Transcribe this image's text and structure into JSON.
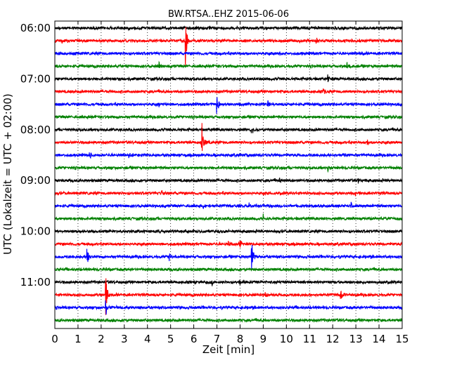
{
  "chart_data": {
    "type": "line",
    "title": "BW.RTSA..EHZ 2015-06-06",
    "xlabel": "Zeit  [min]",
    "ylabel": "UTC (Lokalzeit = UTC + 02:00)",
    "xlim": [
      0,
      15
    ],
    "x_ticks": [
      "0",
      "1",
      "2",
      "3",
      "4",
      "5",
      "6",
      "7",
      "8",
      "9",
      "10",
      "11",
      "12",
      "13",
      "14",
      "15"
    ],
    "y_tick_labels": [
      "06:00",
      "07:00",
      "08:00",
      "09:00",
      "10:00",
      "11:00"
    ],
    "grid": "vertical dotted",
    "colors": [
      "#000000",
      "#ff0000",
      "#0000ff",
      "#008000"
    ],
    "traces": [
      {
        "start": "06:00",
        "color": "#000000",
        "events": [
          {
            "t": 14.2,
            "amp": 0.25
          }
        ]
      },
      {
        "start": "06:15",
        "color": "#ff0000",
        "events": [
          {
            "t": 0.3,
            "amp": 0.35
          },
          {
            "t": 5.65,
            "amp": 1.6
          },
          {
            "t": 11.3,
            "amp": 0.25
          }
        ]
      },
      {
        "start": "06:30",
        "color": "#0000ff",
        "events": [
          {
            "t": 9.7,
            "amp": 0.2
          }
        ]
      },
      {
        "start": "06:45",
        "color": "#008000",
        "events": [
          {
            "t": 4.5,
            "amp": 0.3
          },
          {
            "t": 12.6,
            "amp": 0.35
          }
        ]
      },
      {
        "start": "07:00",
        "color": "#000000",
        "events": [
          {
            "t": 11.8,
            "amp": 0.3
          }
        ]
      },
      {
        "start": "07:15",
        "color": "#ff0000",
        "events": [
          {
            "t": 11.6,
            "amp": 0.3
          }
        ]
      },
      {
        "start": "07:30",
        "color": "#0000ff",
        "events": [
          {
            "t": 7.0,
            "amp": 0.9
          },
          {
            "t": 9.2,
            "amp": 0.35
          },
          {
            "t": 4.5,
            "amp": 0.2
          }
        ]
      },
      {
        "start": "07:45",
        "color": "#008000",
        "events": []
      },
      {
        "start": "08:00",
        "color": "#000000",
        "events": [
          {
            "t": 8.5,
            "amp": 0.2
          }
        ]
      },
      {
        "start": "08:15",
        "color": "#ff0000",
        "events": [
          {
            "t": 6.35,
            "amp": 1.8
          },
          {
            "t": 13.5,
            "amp": 0.3
          }
        ]
      },
      {
        "start": "08:30",
        "color": "#0000ff",
        "events": [
          {
            "t": 1.5,
            "amp": 0.3
          },
          {
            "t": 3.2,
            "amp": 0.2
          },
          {
            "t": 12.5,
            "amp": 0.2
          }
        ]
      },
      {
        "start": "08:45",
        "color": "#008000",
        "events": [
          {
            "t": 11.8,
            "amp": 0.3
          }
        ]
      },
      {
        "start": "09:00",
        "color": "#000000",
        "events": [
          {
            "t": 9.7,
            "amp": 0.2
          },
          {
            "t": 13.1,
            "amp": 0.2
          }
        ]
      },
      {
        "start": "09:15",
        "color": "#ff0000",
        "events": [
          {
            "t": 9.2,
            "amp": 0.35
          },
          {
            "t": 4.6,
            "amp": 0.25
          },
          {
            "t": 13.0,
            "amp": 0.15
          }
        ]
      },
      {
        "start": "09:30",
        "color": "#0000ff",
        "events": [
          {
            "t": 6.4,
            "amp": 0.35
          },
          {
            "t": 8.4,
            "amp": 0.25
          },
          {
            "t": 12.8,
            "amp": 0.3
          }
        ]
      },
      {
        "start": "09:45",
        "color": "#008000",
        "events": [
          {
            "t": 9.0,
            "amp": 0.2
          }
        ]
      },
      {
        "start": "10:00",
        "color": "#000000",
        "events": [
          {
            "t": 7.5,
            "amp": 0.2
          }
        ]
      },
      {
        "start": "10:15",
        "color": "#ff0000",
        "events": [
          {
            "t": 7.5,
            "amp": 0.3
          },
          {
            "t": 8.0,
            "amp": 0.5
          }
        ]
      },
      {
        "start": "10:30",
        "color": "#0000ff",
        "events": [
          {
            "t": 1.4,
            "amp": 0.9
          },
          {
            "t": 4.95,
            "amp": 0.35
          },
          {
            "t": 8.5,
            "amp": 1.2
          }
        ]
      },
      {
        "start": "10:45",
        "color": "#008000",
        "events": []
      },
      {
        "start": "11:00",
        "color": "#000000",
        "events": [
          {
            "t": 6.8,
            "amp": 0.25
          },
          {
            "t": 8.0,
            "amp": 0.2
          }
        ]
      },
      {
        "start": "11:15",
        "color": "#ff0000",
        "events": [
          {
            "t": 2.2,
            "amp": 1.6
          },
          {
            "t": 9.1,
            "amp": 0.25
          },
          {
            "t": 12.35,
            "amp": 0.6
          }
        ]
      },
      {
        "start": "11:30",
        "color": "#0000ff",
        "events": [
          {
            "t": 2.2,
            "amp": 0.9
          }
        ]
      },
      {
        "start": "11:45",
        "color": "#008000",
        "events": []
      }
    ]
  }
}
